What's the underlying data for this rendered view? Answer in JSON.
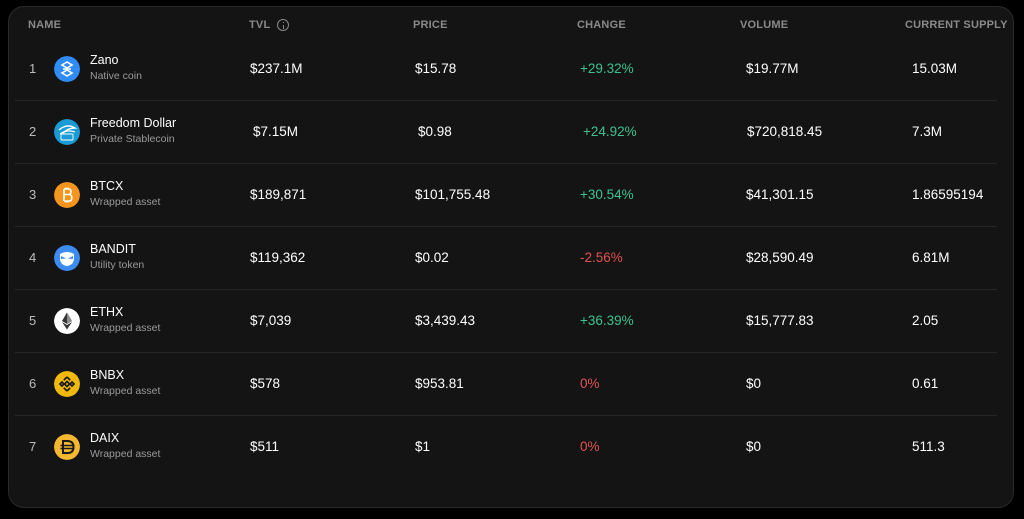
{
  "table": {
    "headers": {
      "name": "NAME",
      "tvl": "TVL",
      "price": "PRICE",
      "change": "CHANGE",
      "volume": "VOLUME",
      "supply": "CURRENT SUPPLY"
    },
    "rows": [
      {
        "rank": "1",
        "name": "Zano",
        "subtitle": "Native coin",
        "icon": "zano-icon",
        "tvl": "$237.1M",
        "price": "$15.78",
        "change": "+29.32%",
        "change_dir": "pos",
        "volume": "$19.77M",
        "supply": "15.03M"
      },
      {
        "rank": "2",
        "name": "Freedom Dollar",
        "subtitle": "Private Stablecoin",
        "icon": "freedom-dollar-icon",
        "tvl": "$7.15M",
        "price": "$0.98",
        "change": "+24.92%",
        "change_dir": "pos",
        "volume": "$720,818.45",
        "supply": "7.3M"
      },
      {
        "rank": "3",
        "name": "BTCX",
        "subtitle": "Wrapped asset",
        "icon": "bitcoin-icon",
        "tvl": "$189,871",
        "price": "$101,755.48",
        "change": "+30.54%",
        "change_dir": "pos",
        "volume": "$41,301.15",
        "supply": "1.86595194"
      },
      {
        "rank": "4",
        "name": "BANDIT",
        "subtitle": "Utility token",
        "icon": "bandit-icon",
        "tvl": "$119,362",
        "price": "$0.02",
        "change": "-2.56%",
        "change_dir": "neg",
        "volume": "$28,590.49",
        "supply": "6.81M"
      },
      {
        "rank": "5",
        "name": "ETHX",
        "subtitle": "Wrapped asset",
        "icon": "ethereum-icon",
        "tvl": "$7,039",
        "price": "$3,439.43",
        "change": "+36.39%",
        "change_dir": "pos",
        "volume": "$15,777.83",
        "supply": "2.05"
      },
      {
        "rank": "6",
        "name": "BNBX",
        "subtitle": "Wrapped asset",
        "icon": "bnb-icon",
        "tvl": "$578",
        "price": "$953.81",
        "change": "0%",
        "change_dir": "neg",
        "volume": "$0",
        "supply": "0.61"
      },
      {
        "rank": "7",
        "name": "DAIX",
        "subtitle": "Wrapped asset",
        "icon": "dai-icon",
        "tvl": "$511",
        "price": "$1",
        "change": "0%",
        "change_dir": "neg",
        "volume": "$0",
        "supply": "511.3"
      }
    ]
  },
  "colors": {
    "positive": "#3ec28f",
    "negative": "#e05252",
    "zano": "#2f8bf5",
    "freedom": "#1a9bd6",
    "bitcoin": "#f4951d",
    "bandit": "#3b8bf0",
    "ethereum": "#ffffff",
    "bnb": "#f0b90b",
    "dai": "#f4b731"
  }
}
